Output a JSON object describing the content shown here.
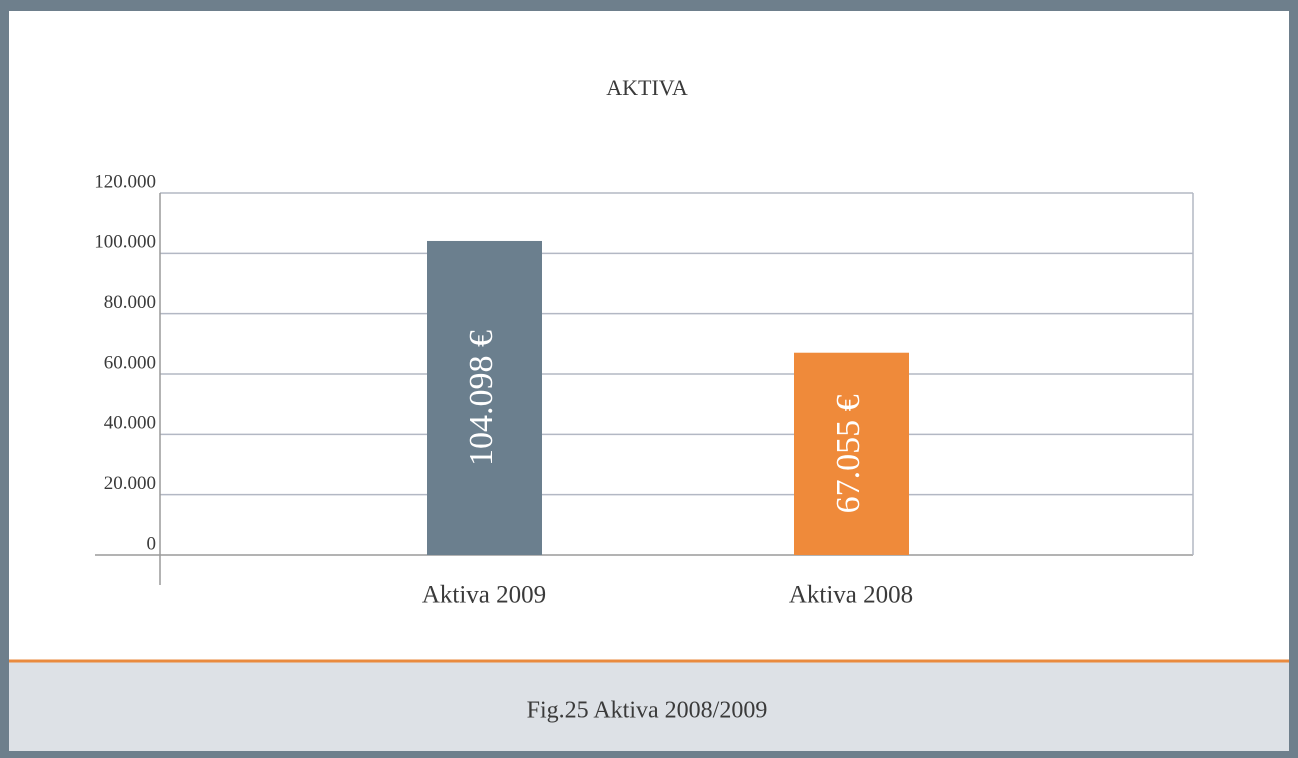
{
  "chart_data": {
    "type": "bar",
    "title": "AKTIVA",
    "categories": [
      "Aktiva 2009",
      "Aktiva 2008"
    ],
    "values": [
      104098,
      67055
    ],
    "value_labels": [
      "104.098 €",
      "67.055 €"
    ],
    "colors": [
      "#6b7f8e",
      "#ef8a3a"
    ],
    "ylim": [
      0,
      120000
    ],
    "yticks": [
      0,
      {
        "value": 20000,
        "label": "20.000"
      },
      {
        "value": 40000,
        "label": "40.000"
      },
      {
        "value": 60000,
        "label": "60.000"
      },
      {
        "value": 80000,
        "label": "80.000"
      },
      {
        "value": 100000,
        "label": "100.000"
      },
      {
        "value": 120000,
        "label": "120.000"
      }
    ],
    "grid": true,
    "caption": "Fig.25 Aktiva 2008/2009"
  }
}
